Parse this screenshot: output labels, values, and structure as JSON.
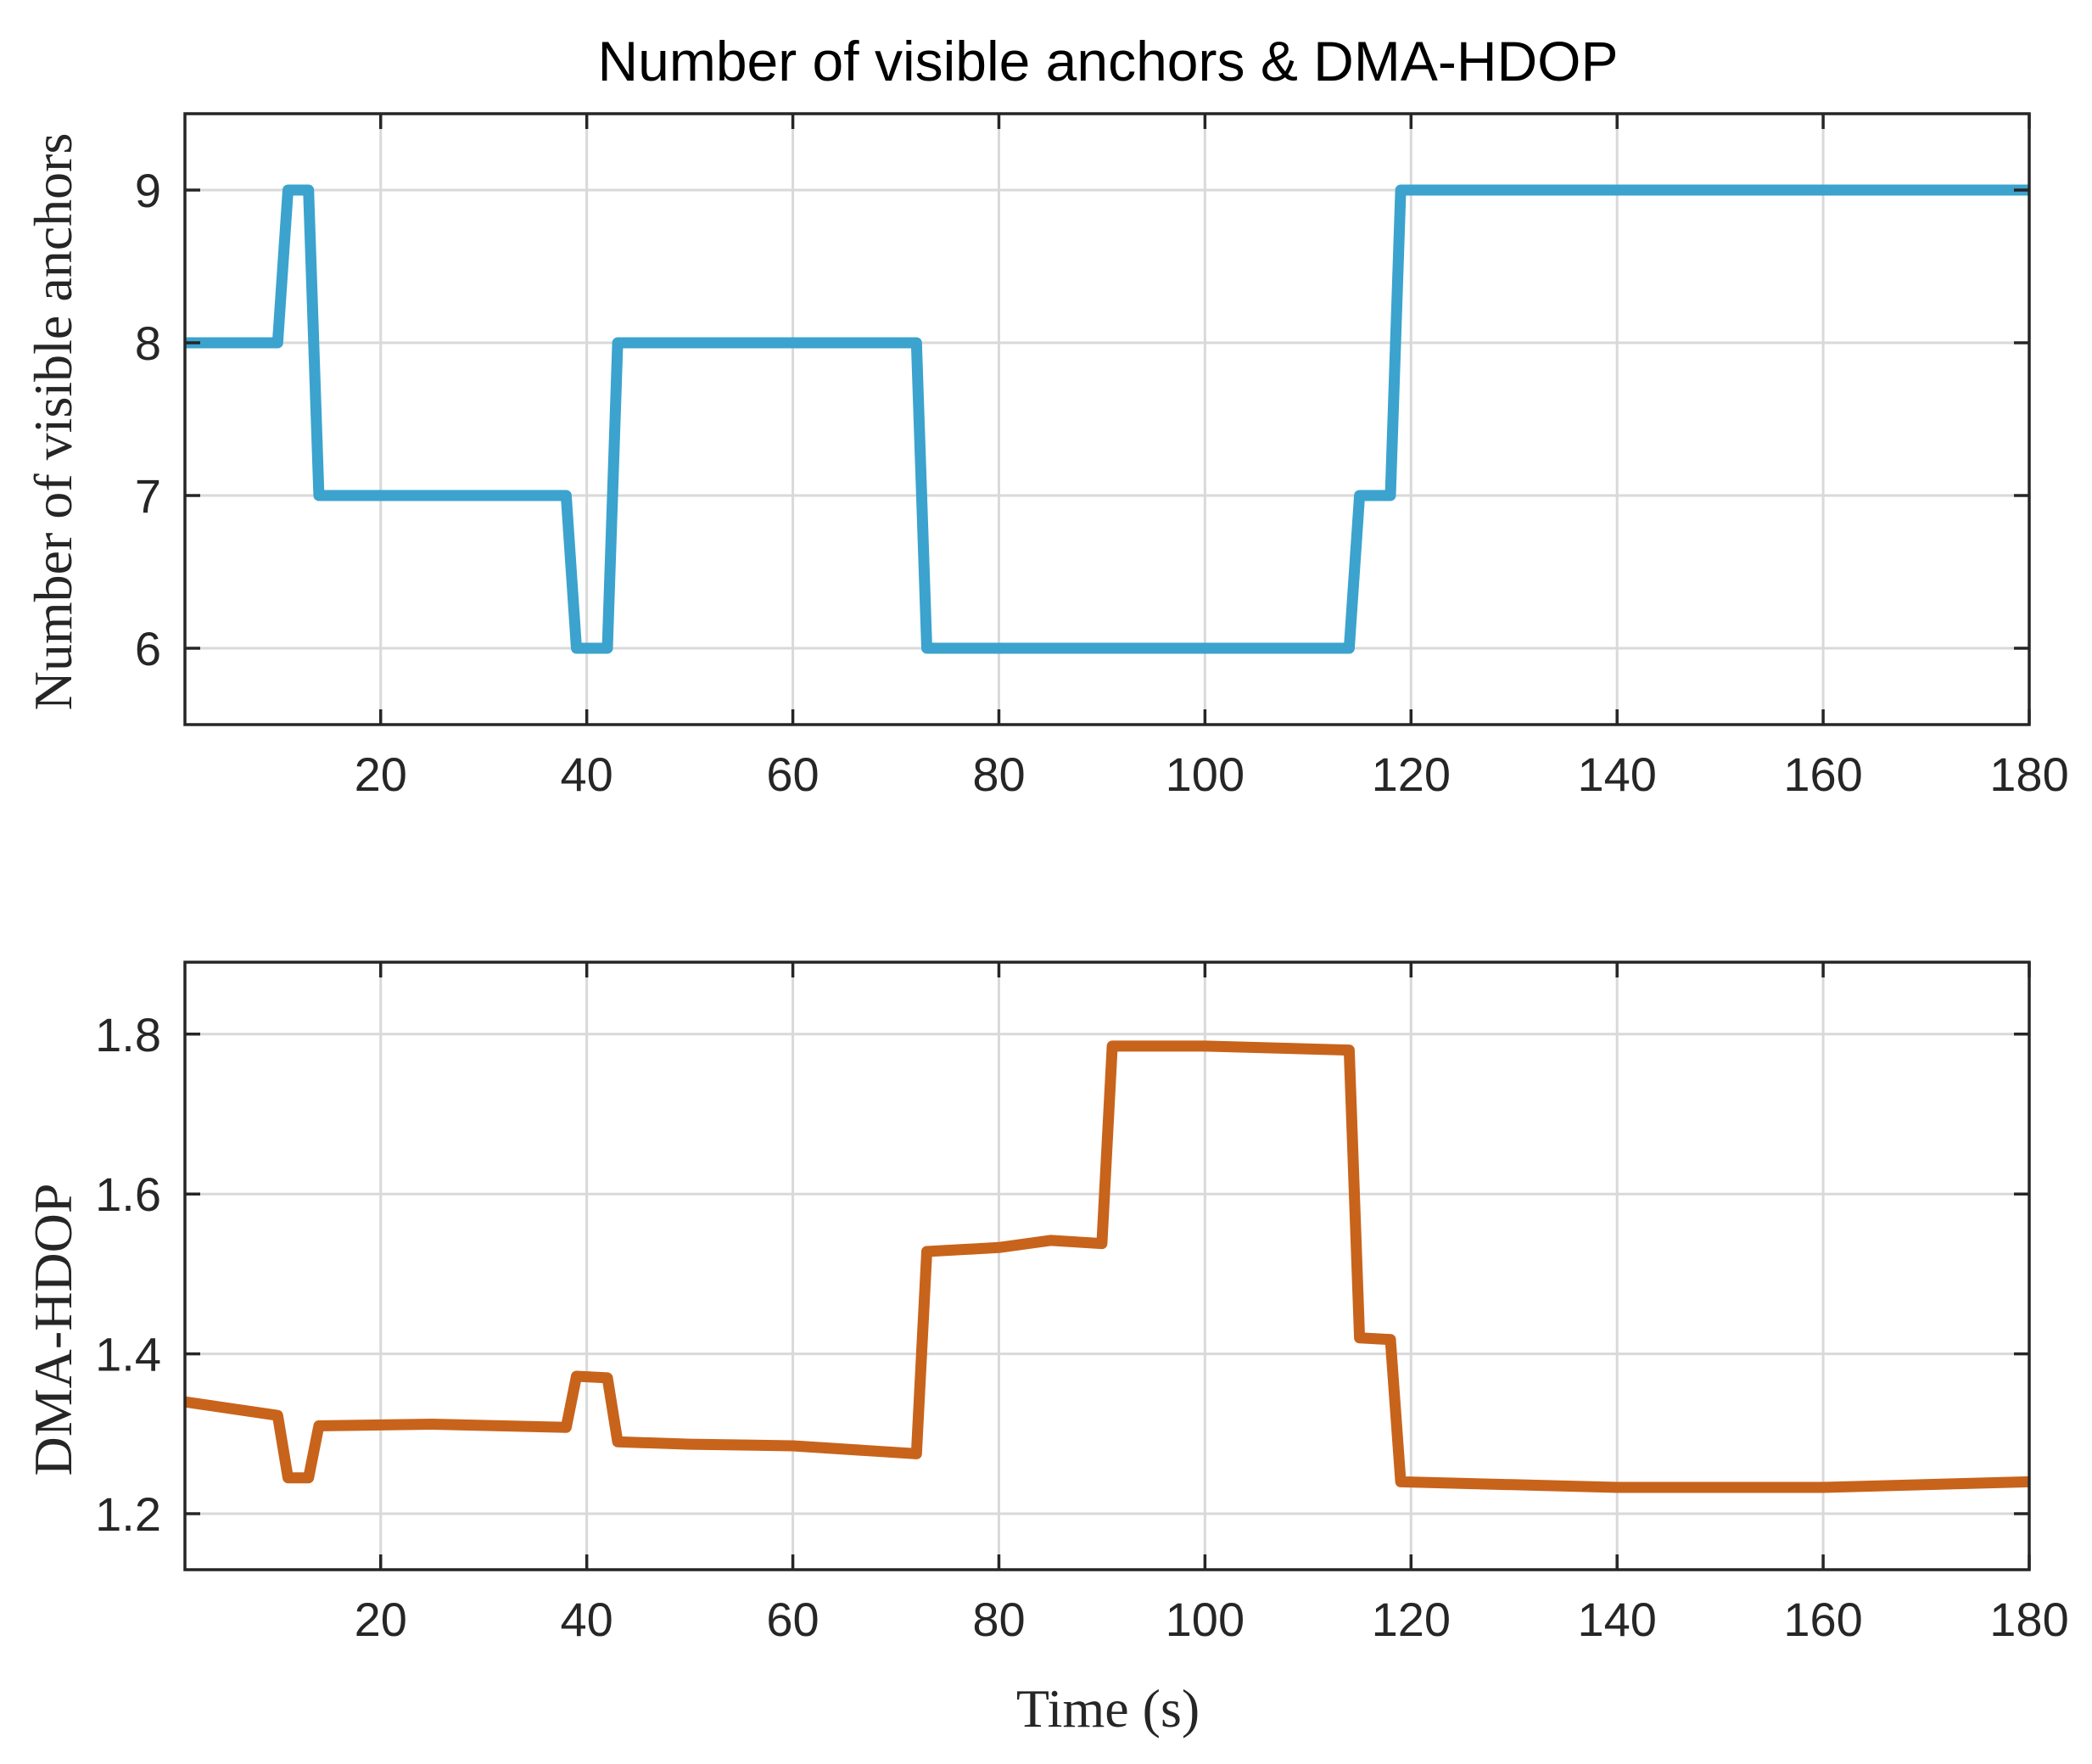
{
  "chart_data": [
    {
      "type": "line",
      "title": "Number of visible anchors & DMA-HDOP",
      "xlabel": "",
      "ylabel": "Number of visible anchors",
      "xlim": [
        1,
        180
      ],
      "ylim": [
        5.5,
        9.5
      ],
      "xticks": [
        20,
        40,
        60,
        80,
        100,
        120,
        140,
        160,
        180
      ],
      "yticks": [
        6,
        7,
        8,
        9
      ],
      "ytick_labels": [
        "6",
        "7",
        "8",
        "9"
      ],
      "grid": true,
      "series": [
        {
          "name": "Number of visible anchors",
          "color": "#3ba3cd",
          "x": [
            1,
            10,
            11,
            13,
            14,
            38,
            39,
            42,
            43,
            72,
            73,
            114,
            115,
            118,
            119,
            180
          ],
          "y": [
            8,
            8,
            9,
            9,
            7,
            7,
            6,
            6,
            8,
            8,
            6,
            6,
            7,
            7,
            9,
            9
          ]
        }
      ]
    },
    {
      "type": "line",
      "title": "",
      "xlabel": "Time (s)",
      "ylabel": "DMA-HDOP",
      "xlim": [
        1,
        180
      ],
      "ylim": [
        1.13,
        1.89
      ],
      "xticks": [
        20,
        40,
        60,
        80,
        100,
        120,
        140,
        160,
        180
      ],
      "yticks": [
        1.2,
        1.4,
        1.6,
        1.8
      ],
      "ytick_labels": [
        "1.2",
        "1.4",
        "1.6",
        "1.8"
      ],
      "grid": true,
      "series": [
        {
          "name": "DMA-HDOP",
          "color": "#c8631c",
          "x": [
            1,
            10,
            11,
            13,
            14,
            25,
            38,
            39,
            42,
            43,
            50,
            60,
            72,
            73,
            80,
            85,
            90,
            91,
            100,
            114,
            115,
            118,
            119,
            140,
            160,
            180
          ],
          "y": [
            1.34,
            1.323,
            1.245,
            1.245,
            1.31,
            1.312,
            1.308,
            1.372,
            1.37,
            1.29,
            1.287,
            1.285,
            1.275,
            1.528,
            1.533,
            1.542,
            1.538,
            1.785,
            1.785,
            1.78,
            1.42,
            1.418,
            1.24,
            1.233,
            1.233,
            1.24
          ]
        }
      ]
    }
  ]
}
